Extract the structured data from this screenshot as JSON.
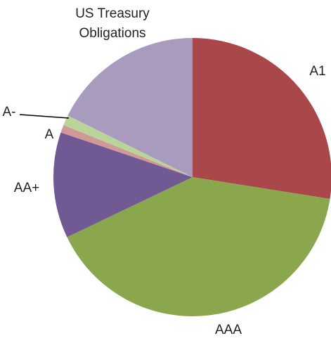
{
  "chart_data": {
    "type": "pie",
    "categories": [
      "A1",
      "AAA",
      "AA+",
      "A",
      "A-",
      "US Treasury Obligations"
    ],
    "values": [
      27.5,
      40.4,
      12.3,
      0.9,
      1.2,
      17.7
    ],
    "colors": [
      "#a9474a",
      "#8aa74e",
      "#715993",
      "#d09896",
      "#b9d49b",
      "#a99bbd"
    ]
  }
}
